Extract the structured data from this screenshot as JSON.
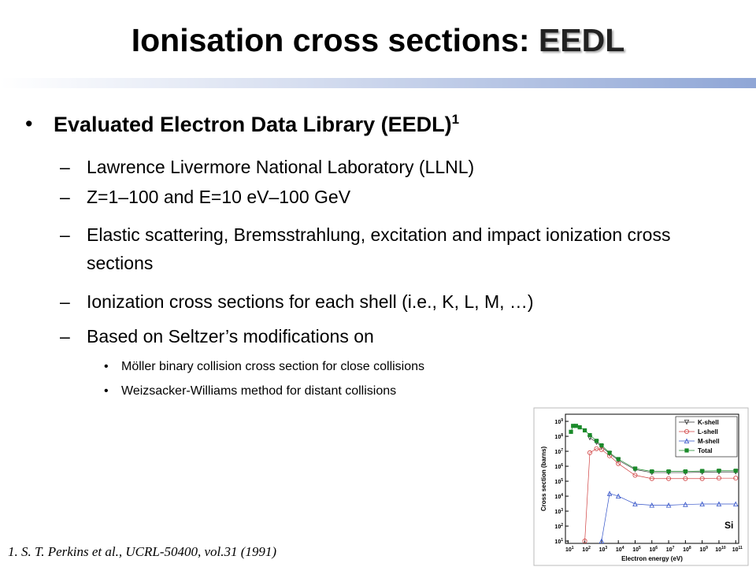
{
  "slide": {
    "title": "Ionisation cross sections: ",
    "title_emphasis": "EEDL",
    "bullet": {
      "text": "Evaluated Electron Data Library (EEDL)",
      "superscript": "1"
    },
    "items": [
      "Lawrence Livermore National Laboratory (LLNL)",
      "Z=1–100 and E=10 eV–100 GeV",
      "Elastic scattering, Bremsstrahlung, excitation and impact ionization cross sections",
      "Ionization cross sections for each shell (i.e., K, L, M, …)",
      "Based on Seltzer’s modifications on"
    ],
    "subitems": [
      "Möller binary collision cross section for close collisions",
      "Weizsacker-Williams method for distant collisions"
    ],
    "footnote": "1. S. T. Perkins et al., UCRL-50400, vol.31 (1991)"
  },
  "chart_data": {
    "type": "line",
    "x_label": "Electron energy (eV)",
    "y_label": "Cross section (barns)",
    "annotation": "Si",
    "log_x": true,
    "log_y": true,
    "legend": "upper right",
    "x": [
      15,
      20,
      30,
      50,
      100,
      200,
      500,
      1000,
      3000,
      10000,
      100000,
      1000000,
      10000000,
      100000000,
      1000000000,
      10000000000,
      100000000000
    ],
    "series": [
      {
        "name": "K-shell",
        "color": "#333333",
        "marker": "triangle-down",
        "values": [
          null,
          null,
          null,
          null,
          null,
          80000000,
          40000000,
          20000000,
          7000000,
          2500000,
          600000,
          380000,
          380000,
          380000,
          400000,
          420000,
          420000
        ]
      },
      {
        "name": "L-shell",
        "color": "#d04040",
        "marker": "circle",
        "values": [
          null,
          null,
          null,
          null,
          10,
          8000000,
          15000000,
          13000000,
          5000000,
          1500000,
          250000,
          150000,
          150000,
          150000,
          150000,
          160000,
          160000
        ]
      },
      {
        "name": "M-shell",
        "color": "#3050c8",
        "marker": "triangle-up",
        "values": [
          null,
          null,
          null,
          null,
          null,
          null,
          null,
          10,
          15000,
          10000,
          3000,
          2500,
          2500,
          2800,
          3000,
          3000,
          3000
        ]
      },
      {
        "name": "Total",
        "color": "#1a8a2a",
        "marker": "square",
        "values": [
          200000000,
          500000000,
          500000000,
          400000000,
          250000000,
          120000000,
          50000000,
          25000000,
          8000000,
          3000000,
          700000,
          450000,
          450000,
          450000,
          480000,
          500000,
          500000
        ]
      }
    ],
    "xlim": [
      7,
      150000000000
    ],
    "ylim": [
      7,
      3000000000
    ],
    "xticks": [
      {
        "value": 10,
        "label": "10",
        "sup": "1"
      },
      {
        "value": 100,
        "label": "10",
        "sup": "2"
      },
      {
        "value": 1000,
        "label": "10",
        "sup": "3"
      },
      {
        "value": 10000,
        "label": "10",
        "sup": "4"
      },
      {
        "value": 100000,
        "label": "10",
        "sup": "5"
      },
      {
        "value": 1000000,
        "label": "10",
        "sup": "6"
      },
      {
        "value": 10000000,
        "label": "10",
        "sup": "7"
      },
      {
        "value": 100000000,
        "label": "10",
        "sup": "8"
      },
      {
        "value": 1000000000,
        "label": "10",
        "sup": "9"
      },
      {
        "value": 10000000000,
        "label": "10",
        "sup": "10"
      },
      {
        "value": 100000000000,
        "label": "10",
        "sup": "11"
      }
    ],
    "yticks": [
      {
        "value": 10,
        "label": "10",
        "sup": "1"
      },
      {
        "value": 100,
        "label": "10",
        "sup": "2"
      },
      {
        "value": 1000,
        "label": "10",
        "sup": "3"
      },
      {
        "value": 10000,
        "label": "10",
        "sup": "4"
      },
      {
        "value": 100000,
        "label": "10",
        "sup": "5"
      },
      {
        "value": 1000000,
        "label": "10",
        "sup": "6"
      },
      {
        "value": 10000000,
        "label": "10",
        "sup": "7"
      },
      {
        "value": 100000000,
        "label": "10",
        "sup": "8"
      },
      {
        "value": 1000000000,
        "label": "10",
        "sup": "9"
      }
    ]
  }
}
